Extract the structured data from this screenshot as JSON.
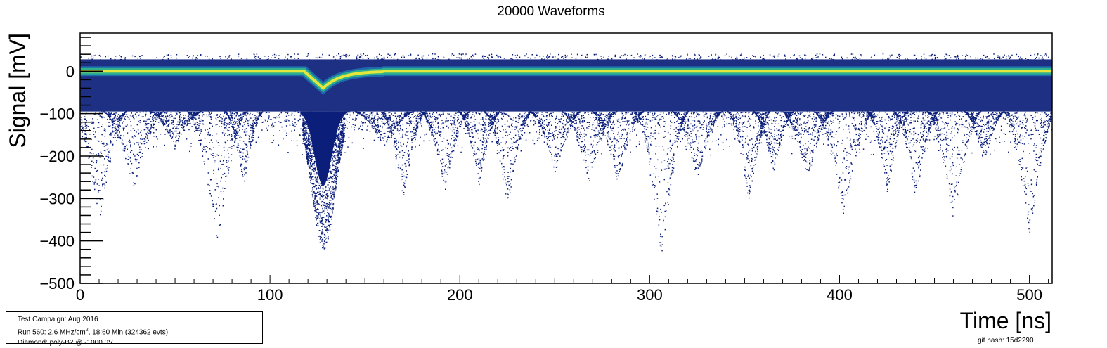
{
  "chart_data": {
    "type": "heatmap",
    "title": "20000 Waveforms",
    "xlabel": "Time [ns]",
    "ylabel": "Signal [mV]",
    "xlim": [
      0,
      512
    ],
    "ylim": [
      -500,
      90
    ],
    "xticks": [
      0,
      100,
      200,
      300,
      400,
      500
    ],
    "yticks": [
      -500,
      -400,
      -300,
      -200,
      -100,
      0
    ],
    "grid": false,
    "baseline_mV": 0,
    "signal_pulse": {
      "peak_time_ns": 128,
      "mean_amplitude_mV": -40,
      "min_mV": -420
    },
    "noise_troughs": [
      {
        "t": 10,
        "min": -360
      },
      {
        "t": 28,
        "min": -280
      },
      {
        "t": 50,
        "min": -180
      },
      {
        "t": 72,
        "min": -410
      },
      {
        "t": 86,
        "min": -270
      },
      {
        "t": 160,
        "min": -180
      },
      {
        "t": 170,
        "min": -300
      },
      {
        "t": 192,
        "min": -280
      },
      {
        "t": 210,
        "min": -270
      },
      {
        "t": 225,
        "min": -320
      },
      {
        "t": 250,
        "min": -240
      },
      {
        "t": 268,
        "min": -265
      },
      {
        "t": 283,
        "min": -265
      },
      {
        "t": 306,
        "min": -450
      },
      {
        "t": 325,
        "min": -260
      },
      {
        "t": 352,
        "min": -320
      },
      {
        "t": 365,
        "min": -240
      },
      {
        "t": 383,
        "min": -260
      },
      {
        "t": 402,
        "min": -340
      },
      {
        "t": 425,
        "min": -290
      },
      {
        "t": 440,
        "min": -305
      },
      {
        "t": 460,
        "min": -355
      },
      {
        "t": 476,
        "min": -220
      },
      {
        "t": 500,
        "min": -390
      }
    ],
    "colors": {
      "background": "#ffffff",
      "scatter": "#0b1e7a",
      "band_core": "#e6e63c",
      "band_mid": "#2fb58a",
      "band_outer": "#1f6fb0"
    }
  },
  "info": {
    "line1": "Test Campaign: Aug 2016",
    "line2_pre": "Run 560: 2.6 MHz/cm",
    "line2_sup": "2",
    "line2_post": ", 18:60 Min (324362 evts)",
    "line3": "Diamond: poly-B2 @ -1000.0V"
  },
  "git_hash": "git hash: 15d2290"
}
